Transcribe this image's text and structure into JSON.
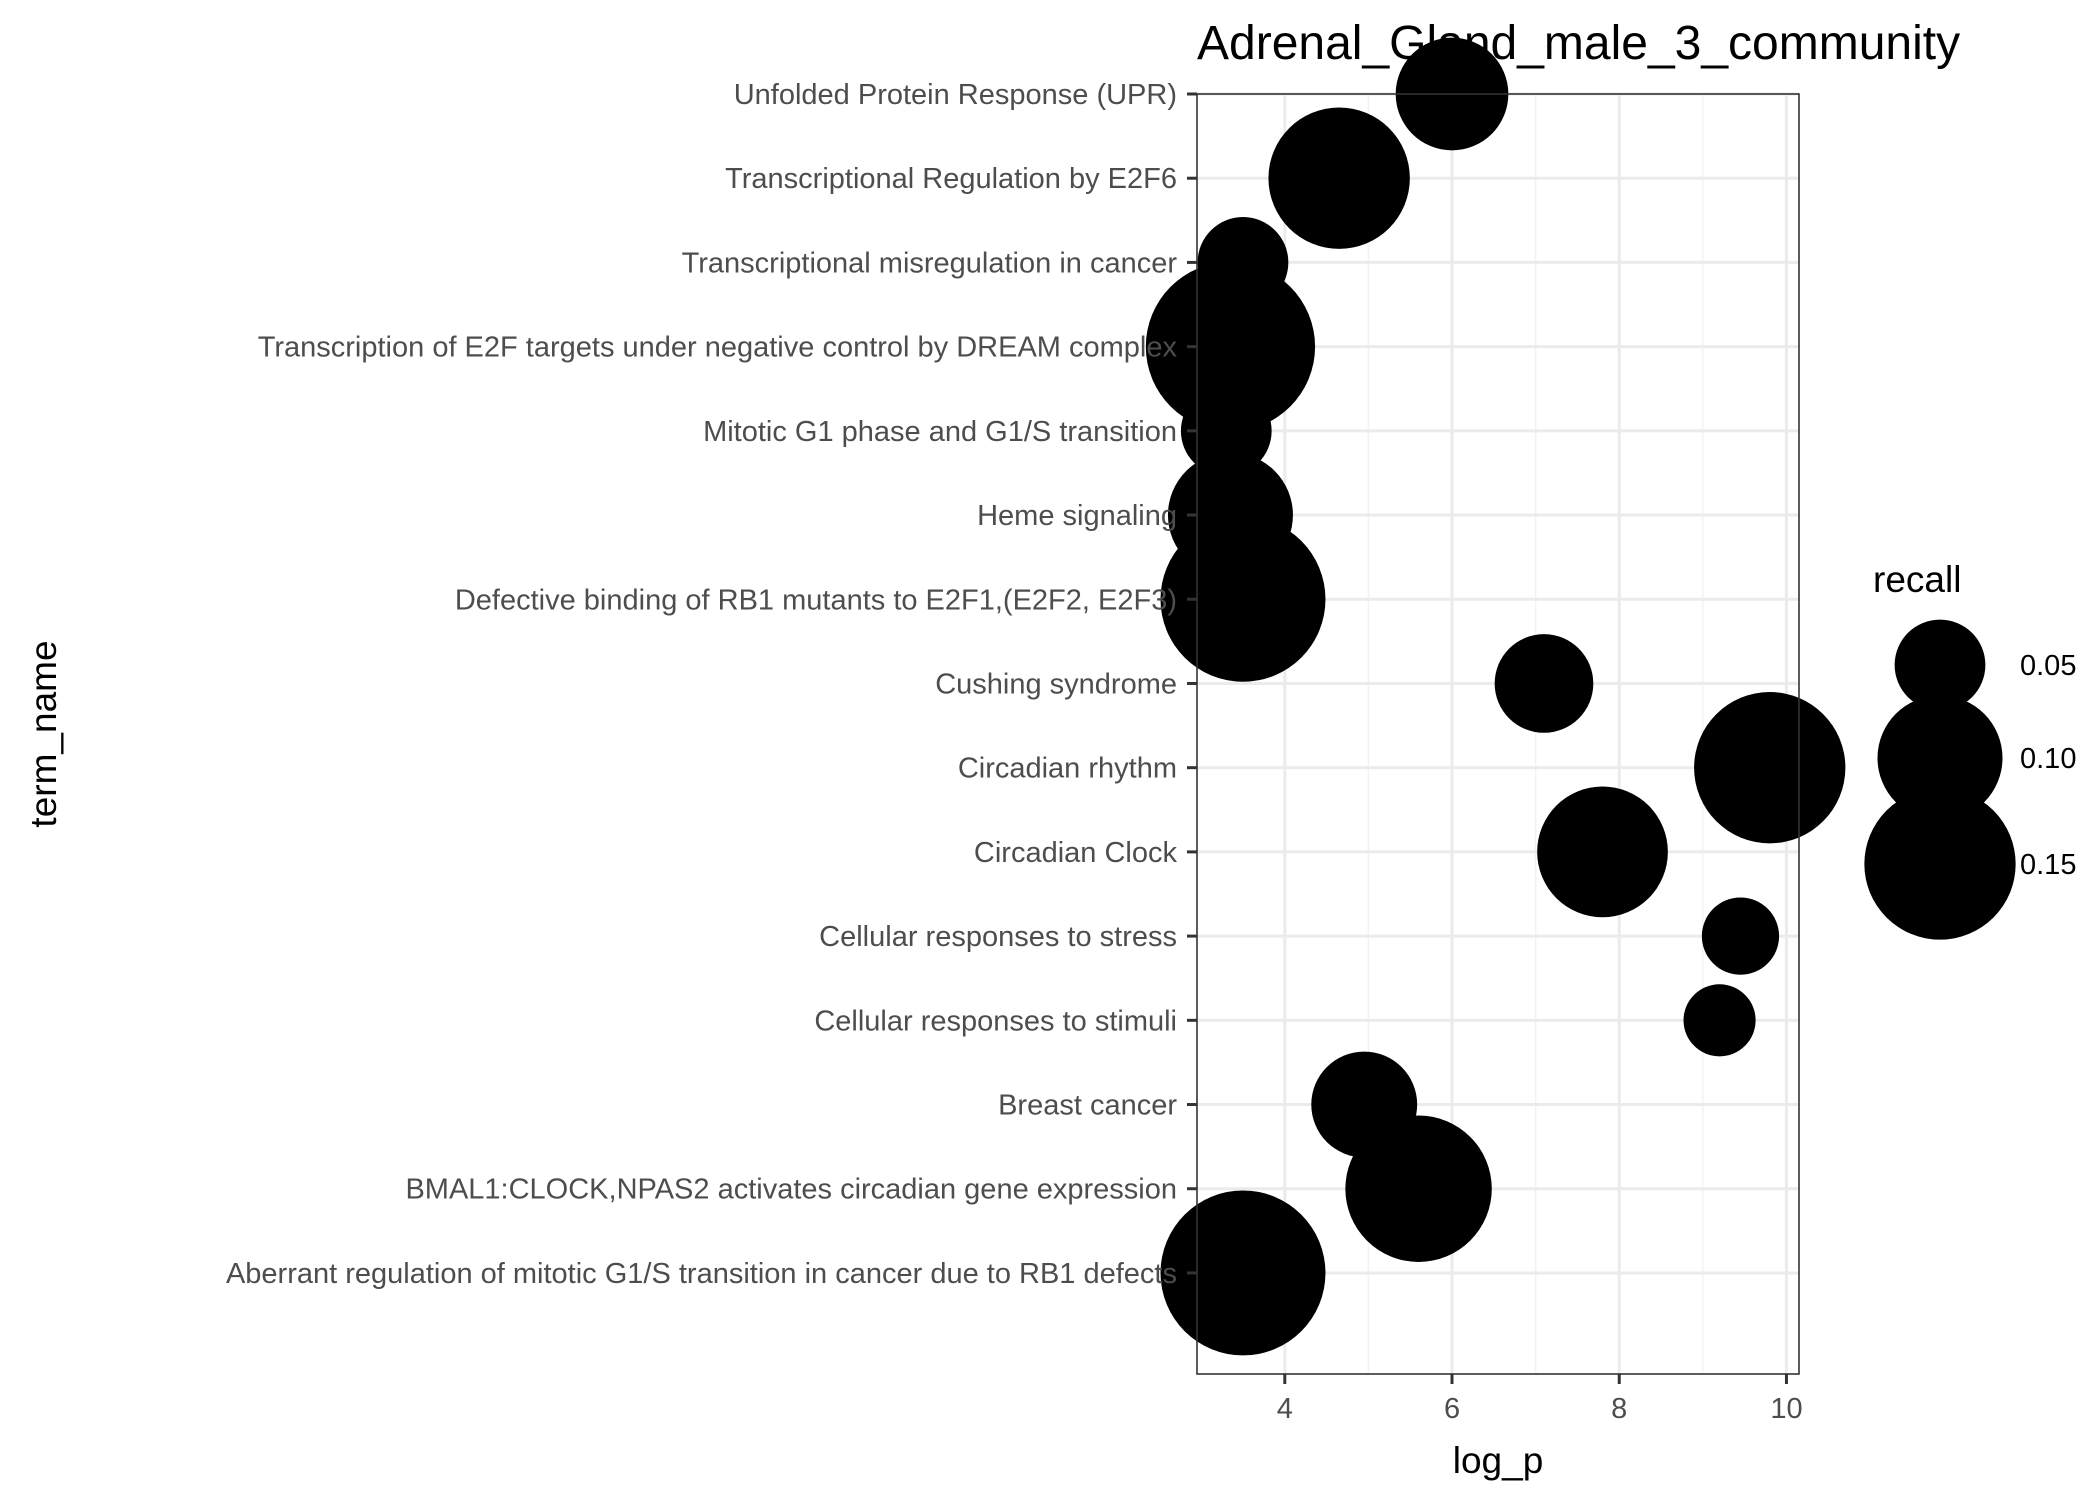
{
  "chart_data": {
    "type": "scatter",
    "title": "Adrenal_Gland_male_3_community",
    "xlabel": "log_p",
    "ylabel": "term_name",
    "xlim": [
      2.95,
      10.15
    ],
    "x_ticks": [
      4,
      6,
      8,
      10
    ],
    "grid": true,
    "legend_position": "right",
    "point_color": "#000000",
    "categories": [
      "Aberrant regulation of mitotic G1/S transition in cancer due to RB1 defects",
      "BMAL1:CLOCK,NPAS2 activates circadian gene expression",
      "Breast cancer",
      "Cellular responses to stimuli",
      "Cellular responses to stress",
      "Circadian Clock",
      "Circadian rhythm",
      "Cushing syndrome",
      "Defective binding of RB1 mutants to E2F1,(E2F2, E2F3)",
      "Heme signaling",
      "Mitotic G1 phase and G1/S transition",
      "Transcription of E2F targets under negative control by DREAM complex",
      "Transcriptional misregulation in cancer",
      "Transcriptional Regulation by E2F6",
      "Unfolded Protein Response (UPR)"
    ],
    "series": [
      {
        "points": [
          {
            "y": "Aberrant regulation of mitotic G1/S transition in cancer due to RB1 defects",
            "x": 3.5,
            "recall": 0.18
          },
          {
            "y": "BMAL1:CLOCK,NPAS2 activates circadian gene expression",
            "x": 5.6,
            "recall": 0.14
          },
          {
            "y": "Breast cancer",
            "x": 4.95,
            "recall": 0.07
          },
          {
            "y": "Cellular responses to stimuli",
            "x": 9.2,
            "recall": 0.03
          },
          {
            "y": "Cellular responses to stress",
            "x": 9.45,
            "recall": 0.035
          },
          {
            "y": "Circadian Clock",
            "x": 7.8,
            "recall": 0.11
          },
          {
            "y": "Circadian rhythm",
            "x": 9.8,
            "recall": 0.15
          },
          {
            "y": "Cushing syndrome",
            "x": 7.1,
            "recall": 0.06
          },
          {
            "y": "Defective binding of RB1 mutants to E2F1,(E2F2, E2F3)",
            "x": 3.5,
            "recall": 0.18
          },
          {
            "y": "Heme signaling",
            "x": 3.35,
            "recall": 0.1
          },
          {
            "y": "Mitotic G1 phase and G1/S transition",
            "x": 3.3,
            "recall": 0.05
          },
          {
            "y": "Transcription of E2F targets under negative control by DREAM complex",
            "x": 3.35,
            "recall": 0.19
          },
          {
            "y": "Transcriptional misregulation in cancer",
            "x": 3.5,
            "recall": 0.05
          },
          {
            "y": "Transcriptional Regulation by E2F6",
            "x": 4.65,
            "recall": 0.13
          },
          {
            "y": "Unfolded Protein Response (UPR)",
            "x": 6.0,
            "recall": 0.08
          }
        ]
      }
    ],
    "legend": {
      "title": "recall",
      "entries": [
        {
          "label": "0.05",
          "recall": 0.05
        },
        {
          "label": "0.10",
          "recall": 0.1
        },
        {
          "label": "0.15",
          "recall": 0.15
        }
      ]
    }
  }
}
